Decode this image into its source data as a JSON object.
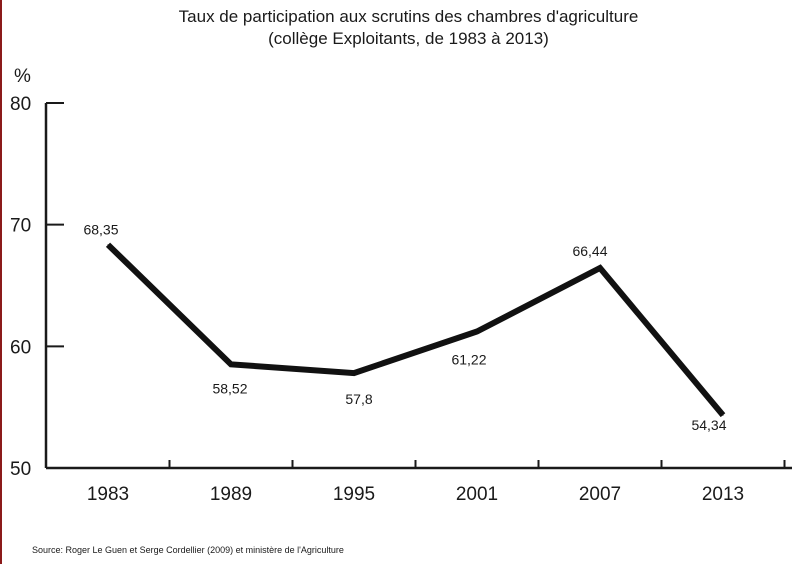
{
  "chart_data": {
    "type": "line",
    "title": "Taux de participation aux scrutins des chambres d'agriculture",
    "subtitle": "(collège Exploitants, de 1983 à 2013)",
    "ylabel": "%",
    "xlabel": "",
    "categories": [
      "1983",
      "1989",
      "1995",
      "2001",
      "2007",
      "2013"
    ],
    "values": [
      68.35,
      58.52,
      57.8,
      61.22,
      66.44,
      54.34
    ],
    "data_labels": [
      "68,35",
      "58,52",
      "57,8",
      "61,22",
      "66,44",
      "54,34"
    ],
    "ylim": [
      50,
      80
    ],
    "yticks": [
      "50",
      "60",
      "70",
      "80"
    ],
    "grid": false,
    "line_color": "#111111"
  },
  "source": "Source: Roger Le Guen et Serge Cordellier (2009) et ministère de l'Agriculture"
}
